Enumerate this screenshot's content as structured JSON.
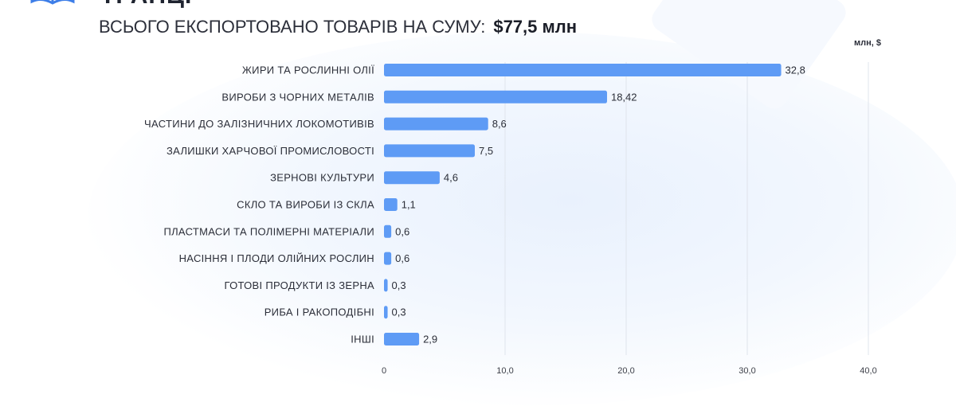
{
  "header": {
    "title_partial": "ТРАНЦІ",
    "title": "ВСЬОГО ЕКСПОРТОВАНО ТОВАРІВ НА СУМУ:",
    "total": "$77,5 млн"
  },
  "colors": {
    "bar": "#5e9bf5",
    "grid": "#dfe4ec",
    "text": "#2b2e38"
  },
  "chart_data": {
    "type": "bar",
    "orientation": "horizontal",
    "unit_label": "млн, $",
    "categories": [
      "ЖИРИ ТА РОСЛИННІ ОЛІЇ",
      "ВИРОБИ З ЧОРНИХ МЕТАЛІВ",
      "ЧАСТИНИ ДО ЗАЛІЗНИЧНИХ ЛОКОМОТИВІВ",
      "ЗАЛИШКИ ХАРЧОВОЇ ПРОМИСЛОВОСТІ",
      "ЗЕРНОВІ КУЛЬТУРИ",
      "СКЛО ТА ВИРОБИ ІЗ СКЛА",
      "ПЛАСТМАСИ ТА ПОЛІМЕРНІ МАТЕРІАЛИ",
      "НАСІННЯ І ПЛОДИ ОЛІЙНИХ РОСЛИН",
      "ГОТОВІ ПРОДУКТИ ІЗ ЗЕРНА",
      "РИБА І РАКОПОДІБНІ",
      "ІНШІ"
    ],
    "values": [
      32.8,
      18.42,
      8.6,
      7.5,
      4.6,
      1.1,
      0.6,
      0.6,
      0.3,
      0.3,
      2.9
    ],
    "value_labels": [
      "32,8",
      "18,42",
      "8,6",
      "7,5",
      "4,6",
      "1,1",
      "0,6",
      "0,6",
      "0,3",
      "0,3",
      "2,9"
    ],
    "xlim": [
      0,
      40
    ],
    "xticks": [
      0,
      10,
      20,
      30,
      40
    ],
    "xtick_labels": [
      "0",
      "10,0",
      "20,0",
      "30,0",
      "40,0"
    ],
    "grid": true,
    "legend": "none"
  }
}
